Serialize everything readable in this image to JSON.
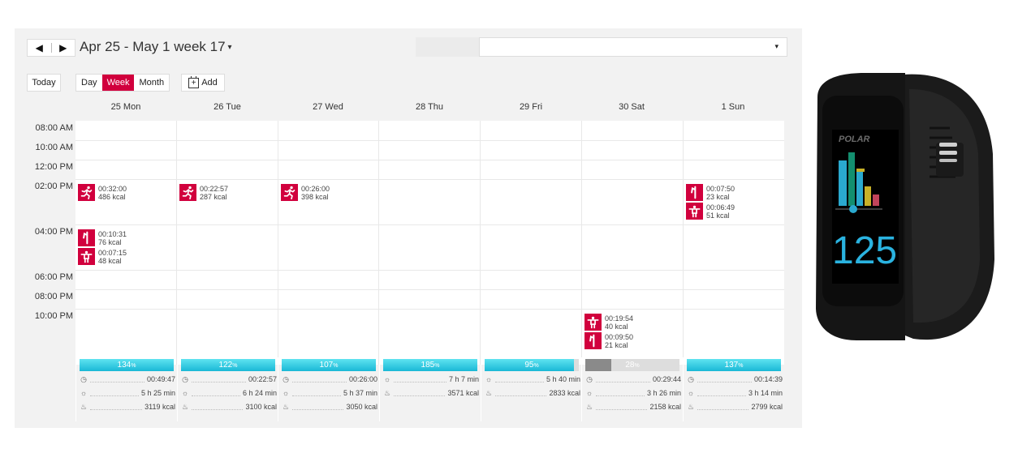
{
  "header": {
    "prev_icon": "◀",
    "next_icon": "▶",
    "week_title": "Apr 25 - May 1 week 17",
    "week_caret": "▾",
    "select_caret": "▾"
  },
  "toolbar": {
    "today": "Today",
    "day": "Day",
    "week": "Week",
    "month": "Month",
    "add": "Add"
  },
  "days": [
    "25 Mon",
    "26 Tue",
    "27 Wed",
    "28 Thu",
    "29 Fri",
    "30 Sat",
    "1 Sun"
  ],
  "times": [
    "08:00 AM",
    "10:00 AM",
    "12:00 PM",
    "02:00 PM",
    "04:00 PM",
    "06:00 PM",
    "08:00 PM",
    "10:00 PM"
  ],
  "events": {
    "mon_2pm": {
      "icon": "running-icon",
      "duration": "00:32:00",
      "kcal": "486 kcal"
    },
    "tue_2pm": {
      "icon": "running-icon",
      "duration": "00:22:57",
      "kcal": "287 kcal"
    },
    "wed_2pm": {
      "icon": "running-icon",
      "duration": "00:26:00",
      "kcal": "398 kcal"
    },
    "sun_2pm_a": {
      "icon": "walking-icon",
      "duration": "00:07:50",
      "kcal": "23 kcal"
    },
    "sun_2pm_b": {
      "icon": "strength-training-icon",
      "duration": "00:06:49",
      "kcal": "51 kcal"
    },
    "mon_4pm_a": {
      "icon": "walking-icon",
      "duration": "00:10:31",
      "kcal": "76 kcal"
    },
    "mon_4pm_b": {
      "icon": "strength-training-icon",
      "duration": "00:07:15",
      "kcal": "48 kcal"
    },
    "sat_10pm_a": {
      "icon": "strength-training-icon",
      "duration": "00:19:54",
      "kcal": "40 kcal"
    },
    "sat_10pm_b": {
      "icon": "walking-icon",
      "duration": "00:09:50",
      "kcal": "21 kcal"
    }
  },
  "summary": [
    {
      "pct": "134",
      "fill": 1.0,
      "grey": false,
      "stats": [
        [
          "stopwatch-icon",
          "00:49:47"
        ],
        [
          "activity-icon",
          "5 h 25 min"
        ],
        [
          "flame-icon",
          "3119 kcal"
        ]
      ]
    },
    {
      "pct": "122",
      "fill": 1.0,
      "grey": false,
      "stats": [
        [
          "stopwatch-icon",
          "00:22:57"
        ],
        [
          "activity-icon",
          "6 h 24 min"
        ],
        [
          "flame-icon",
          "3100 kcal"
        ]
      ]
    },
    {
      "pct": "107",
      "fill": 1.0,
      "grey": false,
      "stats": [
        [
          "stopwatch-icon",
          "00:26:00"
        ],
        [
          "activity-icon",
          "5 h 37 min"
        ],
        [
          "flame-icon",
          "3050 kcal"
        ]
      ]
    },
    {
      "pct": "185",
      "fill": 1.0,
      "grey": false,
      "stats": [
        [
          "activity-icon",
          "7 h 7 min"
        ],
        [
          "flame-icon",
          "3571 kcal"
        ]
      ]
    },
    {
      "pct": "95",
      "fill": 0.95,
      "grey": false,
      "stats": [
        [
          "activity-icon",
          "5 h 40 min"
        ],
        [
          "flame-icon",
          "2833 kcal"
        ]
      ]
    },
    {
      "pct": "28",
      "fill": 0.28,
      "grey": true,
      "stats": [
        [
          "stopwatch-icon",
          "00:29:44"
        ],
        [
          "activity-icon",
          "3 h 26 min"
        ],
        [
          "flame-icon",
          "2158 kcal"
        ]
      ]
    },
    {
      "pct": "137",
      "fill": 1.0,
      "grey": false,
      "stats": [
        [
          "stopwatch-icon",
          "00:14:39"
        ],
        [
          "activity-icon",
          "3 h 14 min"
        ],
        [
          "flame-icon",
          "2799 kcal"
        ]
      ]
    }
  ],
  "pct_unit": "%",
  "watch": {
    "brand": "POLAR",
    "heart_rate": "125"
  },
  "colors": {
    "accent": "#d1003d",
    "bar": "#1ab8d6",
    "bar_grey": "#8a8a8a"
  }
}
